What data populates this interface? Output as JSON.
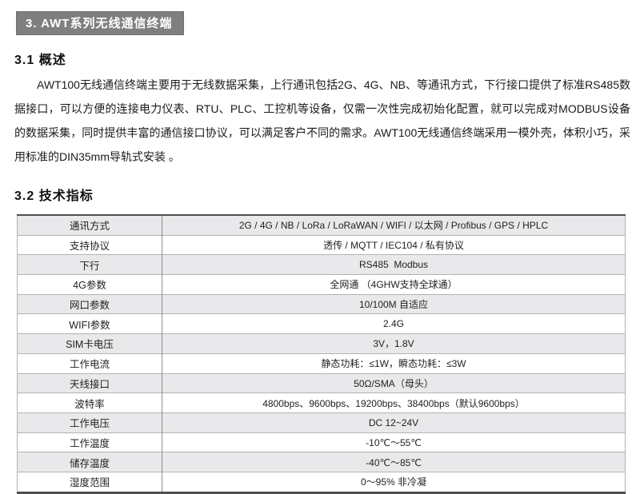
{
  "sections": {
    "main": {
      "title": "3. AWT系列无线通信终端"
    },
    "overview": {
      "heading": "3.1 概述",
      "paragraph": "AWT100无线通信终端主要用于无线数据采集，上行通讯包括2G、4G、NB、等通讯方式，下行接口提供了标准RS485数据接口，可以方便的连接电力仪表、RTU、PLC、工控机等设备，仅需一次性完成初始化配置，就可以完成对MODBUS设备的数据采集，同时提供丰富的通信接口协议，可以满足客户不同的需求。AWT100无线通信终端采用一模外壳，体积小巧，采用标准的DIN35mm导轨式安装 。"
    },
    "specs": {
      "heading": "3.2 技术指标",
      "rows": [
        {
          "label": "通讯方式",
          "value": "2G / 4G / NB / LoRa / LoRaWAN / WIFI / 以太网 / Profibus / GPS / HPLC"
        },
        {
          "label": "支持协议",
          "value": "透传 / MQTT / IEC104 / 私有协议"
        },
        {
          "label": "下行",
          "value": "RS485  Modbus"
        },
        {
          "label": "4G参数",
          "value": "全网通 （4GHW支持全球通）"
        },
        {
          "label": "网口参数",
          "value": "10/100M 自适应"
        },
        {
          "label": "WIFI参数",
          "value": "2.4G"
        },
        {
          "label": "SIM卡电压",
          "value": "3V，1.8V"
        },
        {
          "label": "工作电流",
          "value": "静态功耗：≤1W，瞬态功耗：≤3W"
        },
        {
          "label": "天线接口",
          "value": "50Ω/SMA（母头）"
        },
        {
          "label": "波特率",
          "value": "4800bps、9600bps、19200bps、38400bps（默认9600bps）"
        },
        {
          "label": "工作电压",
          "value": "DC 12~24V"
        },
        {
          "label": "工作温度",
          "value": "-10℃～55℃"
        },
        {
          "label": "储存温度",
          "value": "-40℃～85℃"
        },
        {
          "label": "湿度范围",
          "value": "0～95% 非冷凝"
        }
      ]
    }
  },
  "colors": {
    "section_bar_bg": "#7f7f7f",
    "section_bar_text": "#ffffff",
    "stripe": "#e9e9eb",
    "border_heavy": "#4f4f4f",
    "border_light": "#b3b3b3",
    "text": "#1a1a1a"
  }
}
